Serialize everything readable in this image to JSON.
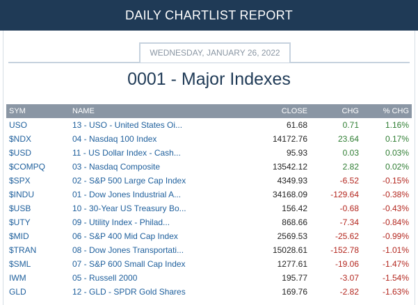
{
  "header": {
    "title": "DAILY CHARTLIST REPORT"
  },
  "report": {
    "date": "WEDNESDAY, JANUARY 26, 2022",
    "title": "0001 - Major Indexes"
  },
  "colors": {
    "header_bg": "#1f3a56",
    "table_header_bg": "#8a96a4",
    "link": "#1e5f9c",
    "positive": "#2e7d32",
    "negative": "#b3261e"
  },
  "table": {
    "columns": {
      "sym": "SYM",
      "name": "NAME",
      "close": "CLOSE",
      "chg": "CHG",
      "pct": "% CHG"
    },
    "rows": [
      {
        "sym": "USO",
        "name": "13 - USO - United States Oi...",
        "close": "61.68",
        "chg": "0.71",
        "pct": "1.16%",
        "dir": "pos"
      },
      {
        "sym": "$NDX",
        "name": "04 - Nasdaq 100 Index",
        "close": "14172.76",
        "chg": "23.64",
        "pct": "0.17%",
        "dir": "pos"
      },
      {
        "sym": "$USD",
        "name": "11 - US Dollar Index - Cash...",
        "close": "95.93",
        "chg": "0.03",
        "pct": "0.03%",
        "dir": "pos"
      },
      {
        "sym": "$COMPQ",
        "name": "03 - Nasdaq Composite",
        "close": "13542.12",
        "chg": "2.82",
        "pct": "0.02%",
        "dir": "pos"
      },
      {
        "sym": "$SPX",
        "name": "02 - S&P 500 Large Cap Index",
        "close": "4349.93",
        "chg": "-6.52",
        "pct": "-0.15%",
        "dir": "neg"
      },
      {
        "sym": "$INDU",
        "name": "01 - Dow Jones Industrial A...",
        "close": "34168.09",
        "chg": "-129.64",
        "pct": "-0.38%",
        "dir": "neg"
      },
      {
        "sym": "$USB",
        "name": "10 - 30-Year US Treasury Bo...",
        "close": "156.42",
        "chg": "-0.68",
        "pct": "-0.43%",
        "dir": "neg"
      },
      {
        "sym": "$UTY",
        "name": "09 - Utility Index - Philad...",
        "close": "868.66",
        "chg": "-7.34",
        "pct": "-0.84%",
        "dir": "neg"
      },
      {
        "sym": "$MID",
        "name": "06 - S&P 400 Mid Cap Index",
        "close": "2569.53",
        "chg": "-25.62",
        "pct": "-0.99%",
        "dir": "neg"
      },
      {
        "sym": "$TRAN",
        "name": "08 - Dow Jones Transportati...",
        "close": "15028.61",
        "chg": "-152.78",
        "pct": "-1.01%",
        "dir": "neg"
      },
      {
        "sym": "$SML",
        "name": "07 - S&P 600 Small Cap Index",
        "close": "1277.61",
        "chg": "-19.06",
        "pct": "-1.47%",
        "dir": "neg"
      },
      {
        "sym": "IWM",
        "name": "05 - Russell 2000",
        "close": "195.77",
        "chg": "-3.07",
        "pct": "-1.54%",
        "dir": "neg"
      },
      {
        "sym": "GLD",
        "name": "12 - GLD - SPDR Gold Shares",
        "close": "169.76",
        "chg": "-2.82",
        "pct": "-1.63%",
        "dir": "neg"
      }
    ]
  }
}
